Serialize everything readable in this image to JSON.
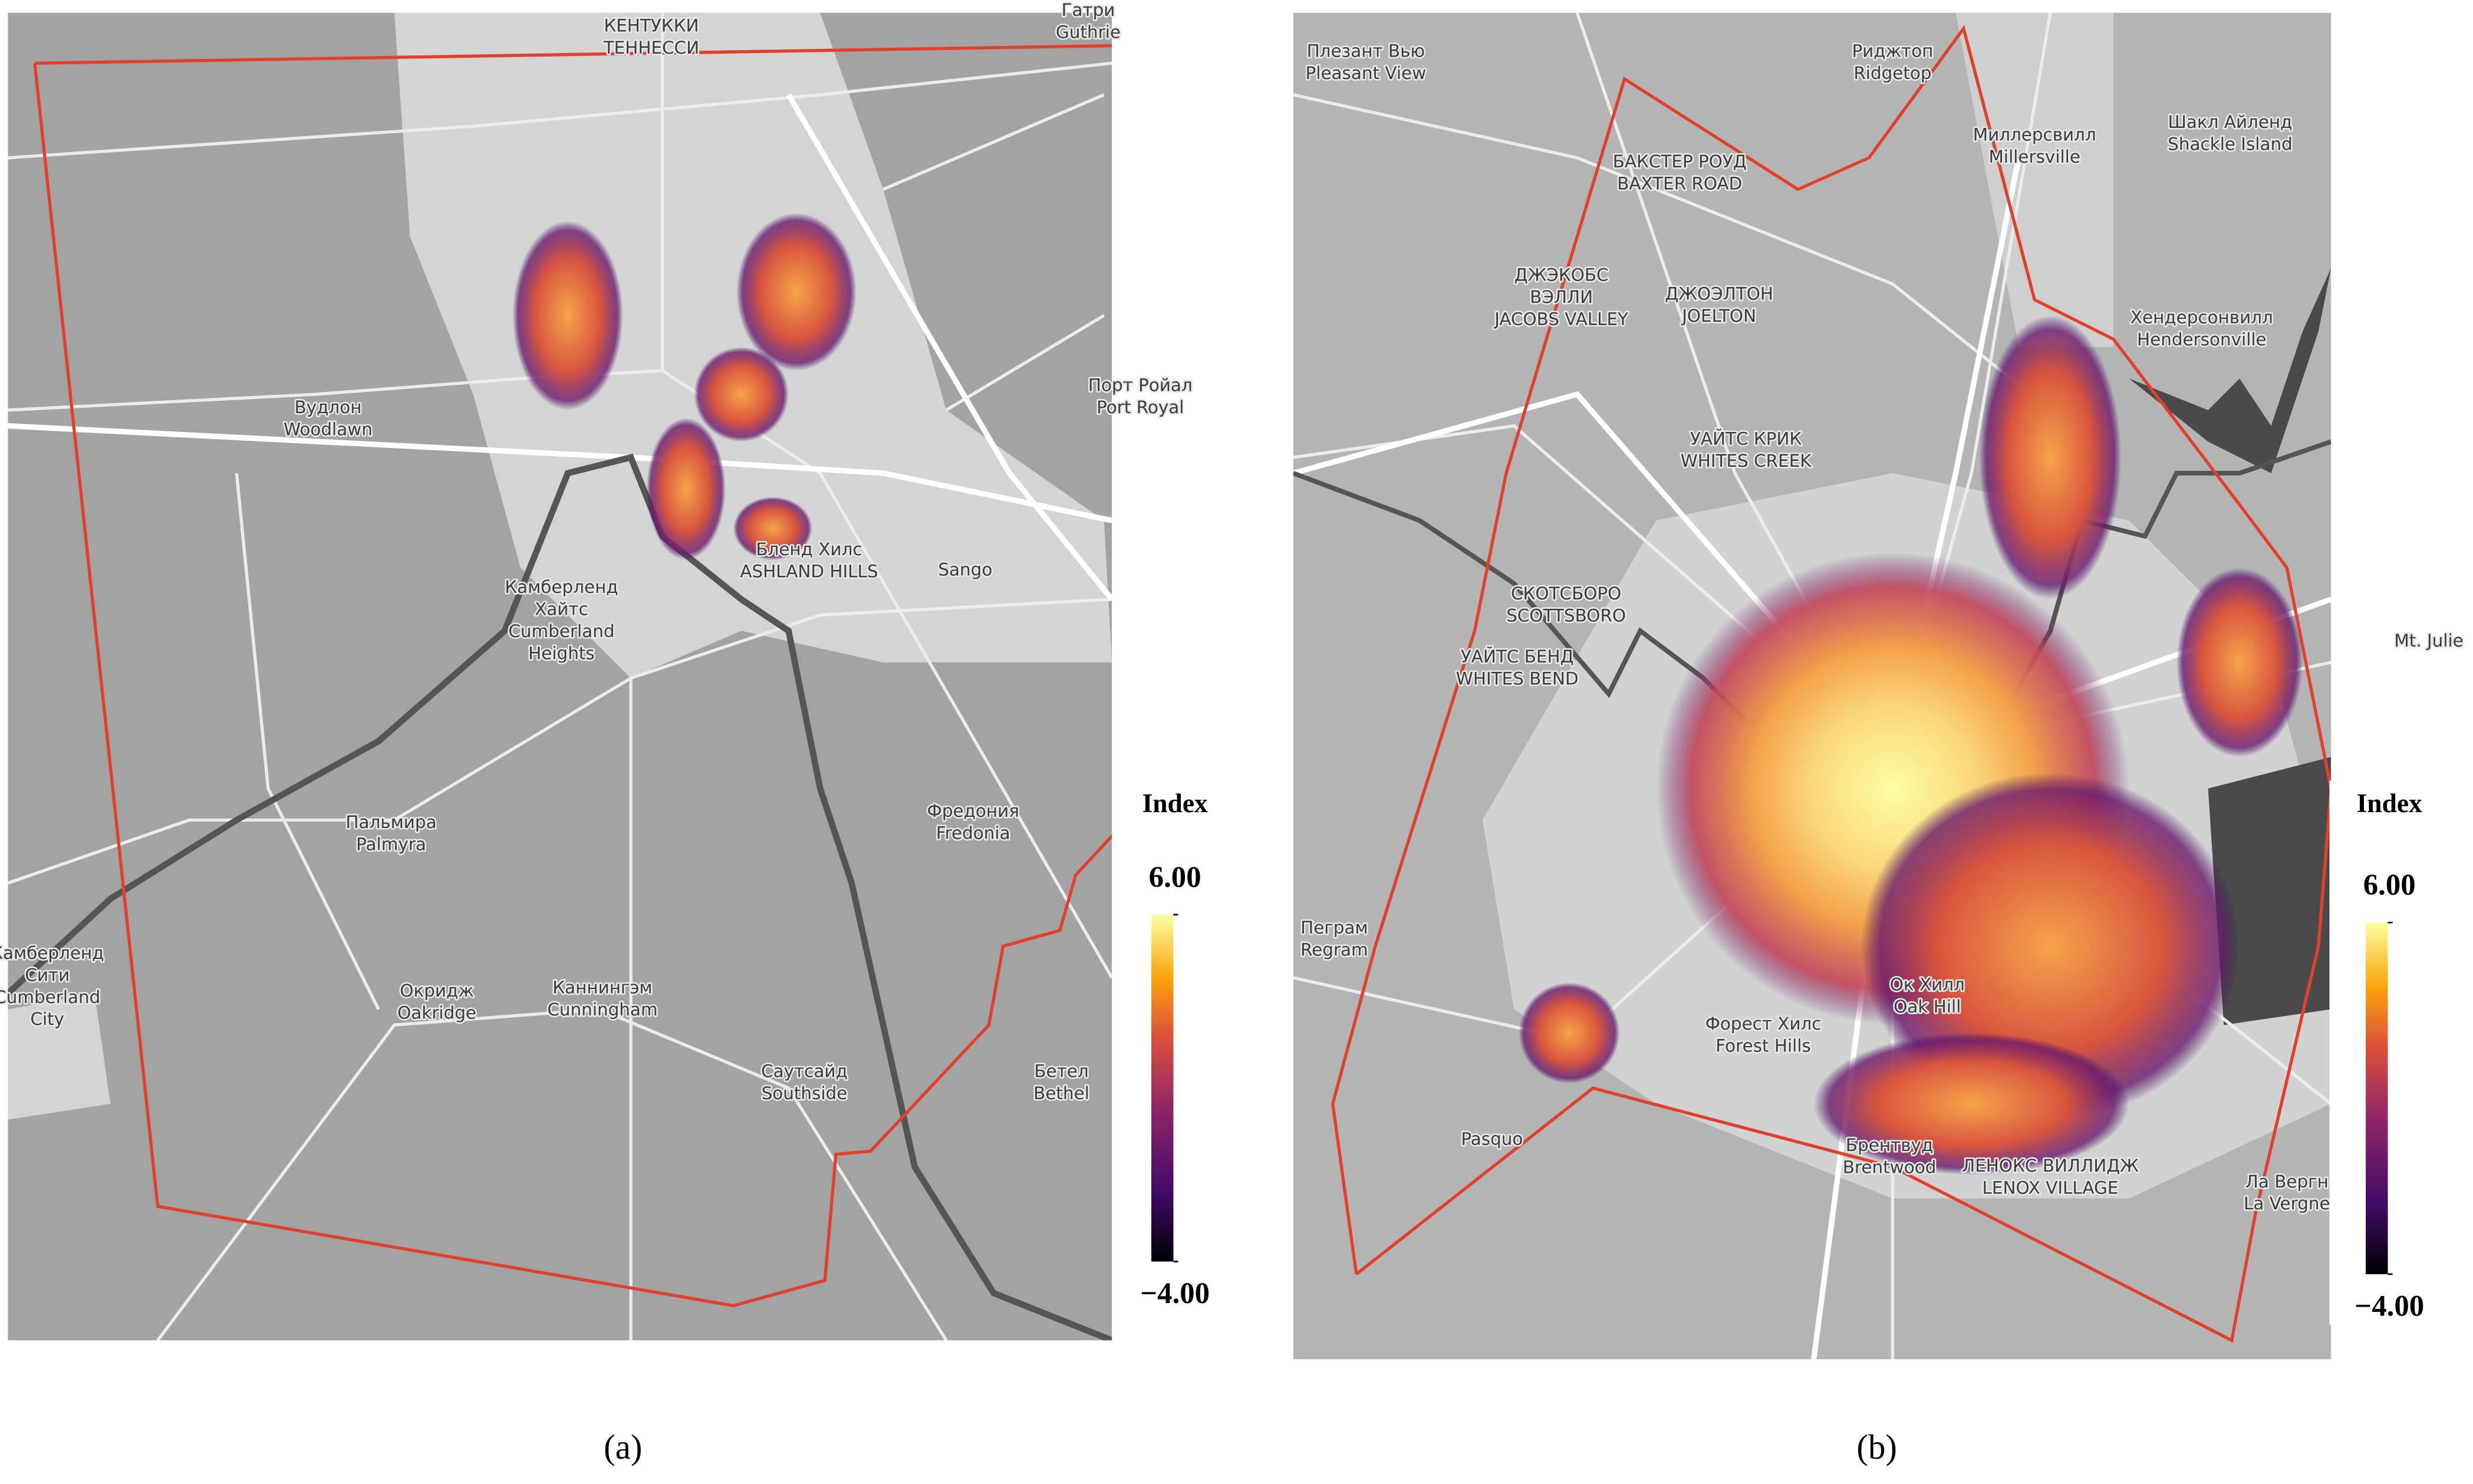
{
  "panels": [
    {
      "caption": "(a)",
      "labels": [
        [
          "КЕНТУККИ",
          "ТЕННЕССИ"
        ],
        [
          "Гатри",
          "Guthrie"
        ],
        [
          "Вудлон",
          "Woodlawn"
        ],
        [
          "Порт Ройал",
          "Port Royal"
        ],
        [
          "Камберленд",
          "Хайтс",
          "Cumberland",
          "Heights"
        ],
        [
          "Sango"
        ],
        [
          "Бленд Хилс",
          "ASHLAND HILLS"
        ],
        [
          "Пальмира",
          "Palmyra"
        ],
        [
          "Фредония",
          "Fredonia"
        ],
        [
          "Окридж",
          "Oakridge"
        ],
        [
          "Каннингэм",
          "Cunningham"
        ],
        [
          "Саутсайд",
          "Southside"
        ],
        [
          "Бетел",
          "Bethel"
        ],
        [
          "Камберленд",
          "Сити",
          "Cumberland",
          "City"
        ]
      ],
      "legend": {
        "title": "Index",
        "range": [
          -4,
          6
        ],
        "ticks": [
          {
            "value": 6,
            "label": "6.00"
          },
          {
            "value": -4,
            "label": "−4.00"
          }
        ]
      }
    },
    {
      "caption": "(b)",
      "labels": [
        [
          "Плезант Вью",
          "Pleasant View"
        ],
        [
          "Риджтоп",
          "Ridgetop"
        ],
        [
          "Миллерсвилл",
          "Millersville"
        ],
        [
          "Шакл Айленд",
          "Shackle Island"
        ],
        [
          "БАКСТЕР РОУД",
          "BAXTER ROAD"
        ],
        [
          "ДЖЭКОБС",
          "ВЭЛЛИ",
          "JACOBS VALLEY"
        ],
        [
          "ДЖОЭЛТОН",
          "JOELTON"
        ],
        [
          "Хендерсонвилл",
          "Hendersonville"
        ],
        [
          "УАЙТС КРИК",
          "WHITES CREEK"
        ],
        [
          "СКОТСБОРО",
          "SCOTTSBORO"
        ],
        [
          "УАЙТС БЕНД",
          "WHITES BEND"
        ],
        [
          "Mt. Julie"
        ],
        [
          "Пеграм",
          "Regram"
        ],
        [
          "Форест Хилс",
          "Forest Hills"
        ],
        [
          "Ок Хилл",
          "Oak Hill"
        ],
        [
          "Брентвуд",
          "Brentwood"
        ],
        [
          "Pasquo"
        ],
        [
          "ЛЕНОКС ВИЛЛИДЖ",
          "LENOX VILLAGE"
        ],
        [
          "Ла Вергн",
          "La Vergne"
        ]
      ],
      "legend": {
        "title": "Index",
        "range": [
          -4,
          6
        ],
        "ticks": [
          {
            "value": 6,
            "label": "6.00"
          },
          {
            "value": -4,
            "label": "−4.00"
          }
        ]
      }
    }
  ]
}
